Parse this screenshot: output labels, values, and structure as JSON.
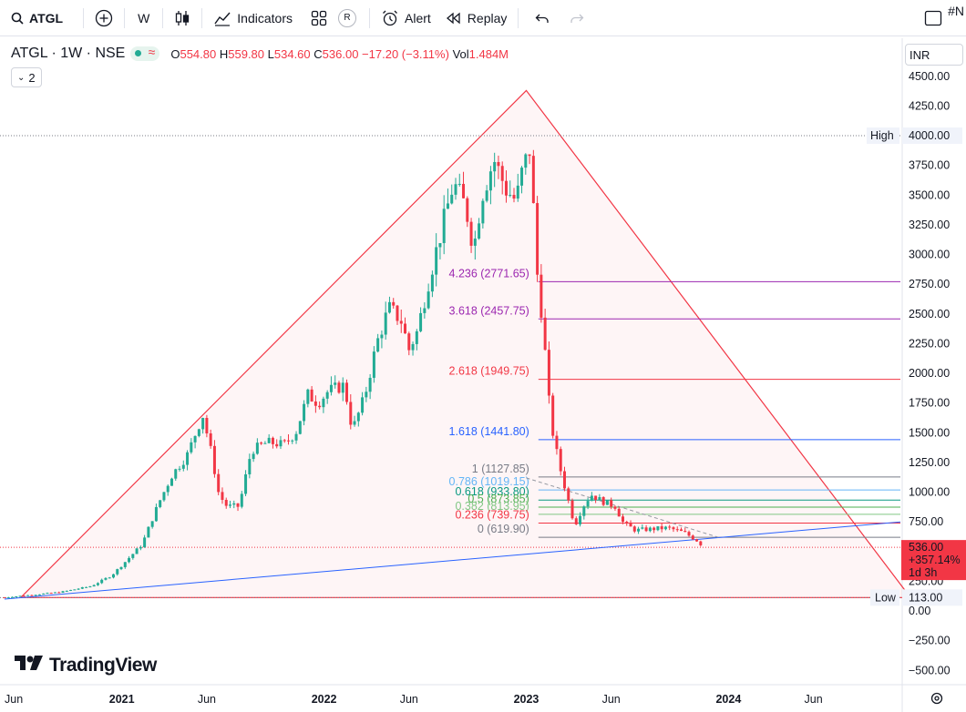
{
  "toolbar": {
    "symbol": "ATGL",
    "interval": "W",
    "indicators_label": "Indicators",
    "alert_label": "Alert",
    "replay_label": "Replay",
    "hashtag": "#N",
    "r_badge": "R"
  },
  "legend": {
    "title": "ATGL · 1W · NSE",
    "o_label": "O",
    "o": "554.80",
    "h_label": "H",
    "h": "559.80",
    "l_label": "L",
    "l": "534.60",
    "c_label": "C",
    "c": "536.00",
    "change": "−17.20 (−3.11%)",
    "vol_label": "Vol",
    "vol": "1.484M",
    "collapsed_count": "2"
  },
  "currency": "INR",
  "price_label": {
    "price": "536.00",
    "change": "+357.14%",
    "countdown": "1d 3h",
    "color": "#f23645"
  },
  "high_label": {
    "text": "High",
    "value": "4000.00"
  },
  "low_label": {
    "text": "Low",
    "value": "113.00"
  },
  "watermark": "TradingView",
  "colors": {
    "up": "#22ab94",
    "down": "#f23645",
    "triangle": "#f23645",
    "trend": "#2962ff"
  },
  "chart_data": {
    "type": "candlestick",
    "y_ticks": [
      "4500.00",
      "4250.00",
      "4000.00",
      "3750.00",
      "3500.00",
      "3250.00",
      "3000.00",
      "2750.00",
      "2500.00",
      "2250.00",
      "2000.00",
      "1750.00",
      "1500.00",
      "1250.00",
      "1000.00",
      "750.00",
      "250.00",
      "0.00",
      "−250.00",
      "−500.00"
    ],
    "y_tick_values": [
      4500,
      4250,
      4000,
      3750,
      3500,
      3250,
      3000,
      2750,
      2500,
      2250,
      2000,
      1750,
      1500,
      1250,
      1000,
      750,
      250,
      0,
      -250,
      -500
    ],
    "ylim": [
      -620,
      4820
    ],
    "x_ticks": [
      {
        "label": "Jun",
        "t": 2020.42
      },
      {
        "label": "2021",
        "t": 2021.0
      },
      {
        "label": "Jun",
        "t": 2021.42
      },
      {
        "label": "2022",
        "t": 2022.0
      },
      {
        "label": "Jun",
        "t": 2022.42
      },
      {
        "label": "2023",
        "t": 2023.0
      },
      {
        "label": "Jun",
        "t": 2023.42
      },
      {
        "label": "2024",
        "t": 2024.0
      },
      {
        "label": "Jun",
        "t": 2024.42
      }
    ],
    "xlim": [
      2020.42,
      2024.85
    ],
    "fib_levels": [
      {
        "label": "4.236 (2771.65)",
        "value": 2771.65,
        "color": "#9c27b0"
      },
      {
        "label": "3.618 (2457.75)",
        "value": 2457.75,
        "color": "#9c27b0"
      },
      {
        "label": "2.618 (1949.75)",
        "value": 1949.75,
        "color": "#f23645"
      },
      {
        "label": "1.618 (1441.80)",
        "value": 1441.8,
        "color": "#2962ff"
      },
      {
        "label": "1 (1127.85)",
        "value": 1127.85,
        "color": "#787b86"
      },
      {
        "label": "0.786 (1019.15)",
        "value": 1019.15,
        "color": "#64b5f6"
      },
      {
        "label": "0.618 (933.80)",
        "value": 933.8,
        "color": "#089981"
      },
      {
        "label": "0.5 (873.85)",
        "value": 873.85,
        "color": "#4caf50"
      },
      {
        "label": "0.382 (813.95)",
        "value": 813.95,
        "color": "#81c784"
      },
      {
        "label": "0.236 (739.75)",
        "value": 739.75,
        "color": "#f23645"
      },
      {
        "label": "0 (619.90)",
        "value": 619.9,
        "color": "#787b86"
      }
    ],
    "high": 4000,
    "low": 113,
    "last": 536,
    "triangle": [
      [
        2020.5,
        113
      ],
      [
        2023.0,
        4380
      ],
      [
        2024.9,
        113
      ]
    ],
    "trendline": [
      [
        2020.42,
        100
      ],
      [
        2024.85,
        750
      ]
    ],
    "dashed_trend": [
      [
        2023.0,
        1120
      ],
      [
        2023.95,
        620
      ]
    ],
    "price_path": [
      [
        2020.42,
        115
      ],
      [
        2020.55,
        135
      ],
      [
        2020.7,
        160
      ],
      [
        2020.85,
        210
      ],
      [
        2020.95,
        300
      ],
      [
        2021.02,
        420
      ],
      [
        2021.1,
        560
      ],
      [
        2021.18,
        900
      ],
      [
        2021.25,
        1150
      ],
      [
        2021.32,
        1300
      ],
      [
        2021.4,
        1650
      ],
      [
        2021.44,
        1350
      ],
      [
        2021.48,
        980
      ],
      [
        2021.52,
        880
      ],
      [
        2021.58,
        880
      ],
      [
        2021.64,
        1350
      ],
      [
        2021.72,
        1420
      ],
      [
        2021.8,
        1400
      ],
      [
        2021.86,
        1500
      ],
      [
        2021.92,
        1820
      ],
      [
        2021.97,
        1750
      ],
      [
        2022.02,
        1850
      ],
      [
        2022.1,
        1900
      ],
      [
        2022.14,
        1520
      ],
      [
        2022.2,
        1800
      ],
      [
        2022.26,
        2250
      ],
      [
        2022.32,
        2550
      ],
      [
        2022.38,
        2450
      ],
      [
        2022.42,
        2200
      ],
      [
        2022.46,
        2350
      ],
      [
        2022.52,
        2800
      ],
      [
        2022.58,
        3200
      ],
      [
        2022.64,
        3600
      ],
      [
        2022.7,
        3400
      ],
      [
        2022.74,
        3050
      ],
      [
        2022.78,
        3500
      ],
      [
        2022.84,
        3800
      ],
      [
        2022.9,
        3550
      ],
      [
        2022.95,
        3450
      ],
      [
        2022.98,
        3700
      ],
      [
        2023.02,
        3900
      ],
      [
        2023.05,
        2900
      ],
      [
        2023.08,
        2450
      ],
      [
        2023.12,
        1600
      ],
      [
        2023.16,
        1250
      ],
      [
        2023.2,
        980
      ],
      [
        2023.24,
        720
      ],
      [
        2023.28,
        880
      ],
      [
        2023.32,
        980
      ],
      [
        2023.38,
        920
      ],
      [
        2023.44,
        880
      ],
      [
        2023.48,
        740
      ],
      [
        2023.54,
        680
      ],
      [
        2023.62,
        690
      ],
      [
        2023.7,
        700
      ],
      [
        2023.78,
        660
      ],
      [
        2023.84,
        600
      ],
      [
        2023.88,
        536
      ]
    ]
  }
}
